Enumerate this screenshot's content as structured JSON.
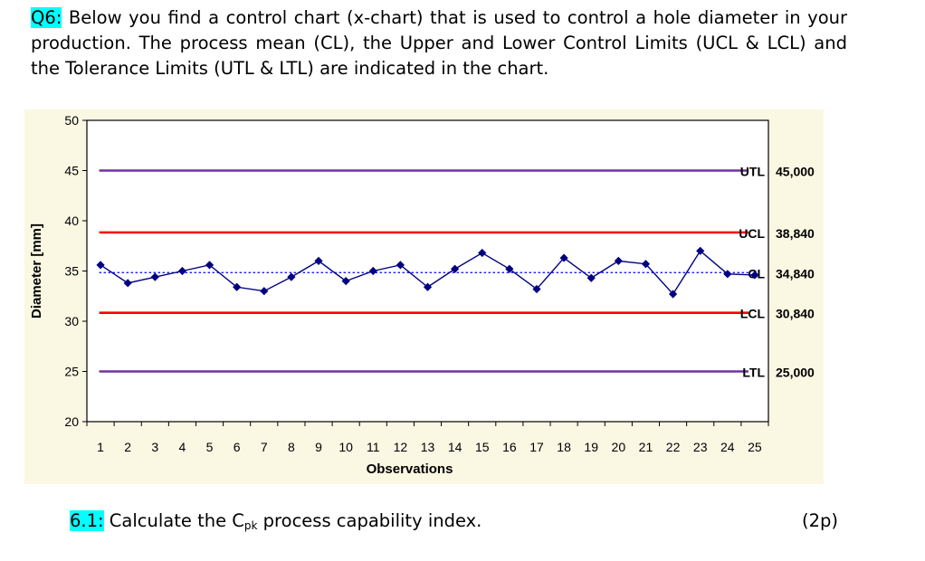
{
  "question": {
    "number": "Q6:",
    "text": " Below you find a control chart (x-chart) that is used to control a hole diameter in your production. The process mean (CL), the Upper and Lower Control Limits (UCL & LCL) and the Tolerance Limits (UTL & LTL) are indicated in the chart."
  },
  "subquestion": {
    "number": "6.1:",
    "text_before": " Calculate the C",
    "subscript": "pk",
    "text_after": " process capability index.",
    "points": "(2p)"
  },
  "chart_data": {
    "type": "line",
    "xlabel": "Observations",
    "ylabel": "Diameter [mm]",
    "ylim": [
      20,
      50
    ],
    "yticks": [
      "20",
      "25",
      "30",
      "35",
      "40",
      "45",
      "50"
    ],
    "x": [
      1,
      2,
      3,
      4,
      5,
      6,
      7,
      8,
      9,
      10,
      11,
      12,
      13,
      14,
      15,
      16,
      17,
      18,
      19,
      20,
      21,
      22,
      23,
      24,
      25
    ],
    "xtick_labels": [
      "1",
      "2",
      "3",
      "4",
      "5",
      "6",
      "7",
      "8",
      "9",
      "10",
      "11",
      "12",
      "13",
      "14",
      "15",
      "16",
      "17",
      "18",
      "19",
      "20",
      "21",
      "22",
      "23",
      "24",
      "25"
    ],
    "series": [
      {
        "values": [
          35.6,
          33.8,
          34.4,
          35.0,
          35.6,
          33.4,
          33.0,
          34.4,
          36.0,
          34.0,
          35.0,
          35.6,
          33.4,
          35.2,
          36.8,
          35.2,
          33.2,
          36.3,
          34.3,
          36.0,
          35.7,
          32.7,
          37.0,
          34.7,
          34.6
        ],
        "color": "#000080"
      }
    ],
    "reference_lines": [
      {
        "name": "UTL",
        "value": 45.0,
        "label": "45,000",
        "color": "#7030a0",
        "style": "solid"
      },
      {
        "name": "UCL",
        "value": 38.84,
        "label": "38,840",
        "color": "#ff0000",
        "style": "solid"
      },
      {
        "name": "CL",
        "value": 34.84,
        "label": "34,840",
        "color": "#0000ff",
        "style": "dotted"
      },
      {
        "name": "LCL",
        "value": 30.84,
        "label": "30,840",
        "color": "#ff0000",
        "style": "solid"
      },
      {
        "name": "LTL",
        "value": 25.0,
        "label": "25,000",
        "color": "#7030a0",
        "style": "solid"
      }
    ],
    "grid": false
  }
}
